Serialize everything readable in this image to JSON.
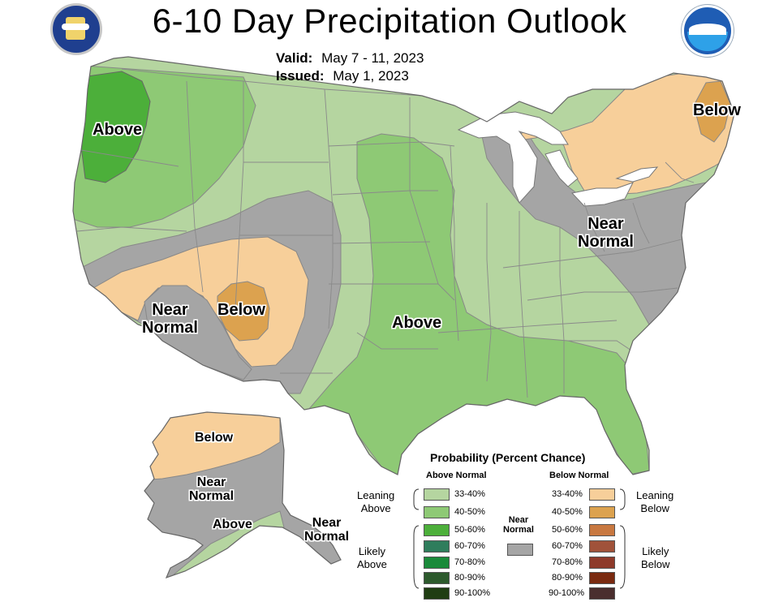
{
  "header": {
    "title": "6-10 Day Precipitation Outlook",
    "valid_label": "Valid:",
    "valid_value": "May 7 - 11, 2023",
    "issued_label": "Issued:",
    "issued_value": "May 1, 2023",
    "left_logo": "commerce-seal-icon",
    "right_logo": "noaa-logo-icon"
  },
  "colors": {
    "above_33_40": "#b5d5a0",
    "above_40_50": "#8ec975",
    "above_50_60": "#4caf3a",
    "above_60_70": "#2f7d5c",
    "above_70_80": "#1a8a3a",
    "above_80_90": "#2d5a2d",
    "above_90_100": "#1f3d12",
    "below_33_40": "#f7cf9a",
    "below_40_50": "#dca24f",
    "below_50_60": "#c87840",
    "below_60_70": "#a0523a",
    "below_70_80": "#8e3a2a",
    "below_80_90": "#7a2a10",
    "below_90_100": "#4a2e2e",
    "near_normal": "#a5a5a5",
    "lakes": "#ffffff",
    "borders": "#8a8a8a"
  },
  "map_labels": {
    "nw_above": "Above",
    "ne_below": "Below",
    "east_near_normal": "Near\nNormal",
    "sw_near_normal": "Near\nNormal",
    "sw_below": "Below",
    "central_above": "Above",
    "ak_below": "Below",
    "ak_near_normal": "Near\nNormal",
    "ak_above": "Above",
    "panhandle_near_normal": "Near\nNormal"
  },
  "legend": {
    "title": "Probability (Percent Chance)",
    "above_header": "Above Normal",
    "below_header": "Below Normal",
    "near_normal": "Near\nNormal",
    "leaning_above": "Leaning\nAbove",
    "likely_above": "Likely\nAbove",
    "leaning_below": "Leaning\nBelow",
    "likely_below": "Likely\nBelow",
    "ranges": [
      "33-40%",
      "40-50%",
      "50-60%",
      "60-70%",
      "70-80%",
      "80-90%",
      "90-100%"
    ]
  }
}
